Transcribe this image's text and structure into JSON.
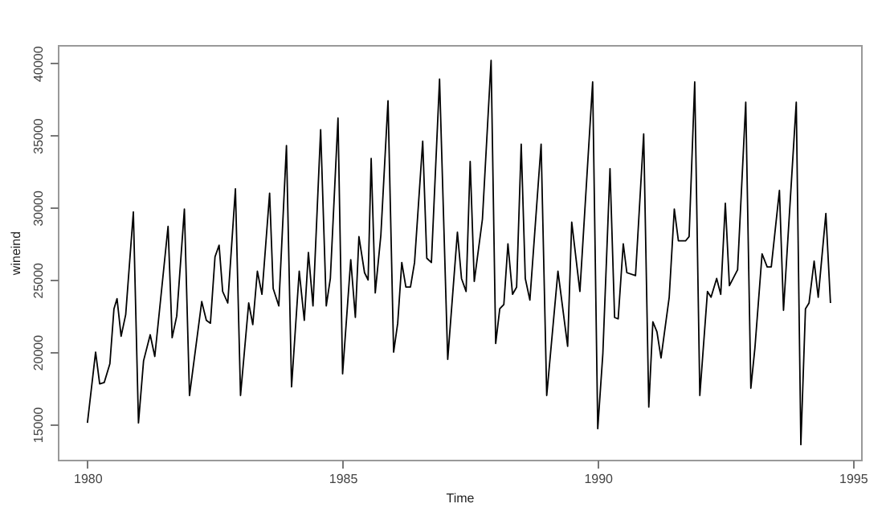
{
  "chart_data": {
    "type": "line",
    "xlabel": "Time",
    "ylabel": "wineind",
    "x": [
      1980.0,
      1980.16,
      1980.24,
      1980.33,
      1980.44,
      1980.52,
      1980.58,
      1980.66,
      1980.75,
      1980.9,
      1981.0,
      1981.1,
      1981.23,
      1981.32,
      1981.58,
      1981.66,
      1981.75,
      1981.9,
      1982.0,
      1982.24,
      1982.33,
      1982.41,
      1982.5,
      1982.58,
      1982.65,
      1982.75,
      1982.9,
      1983.0,
      1983.16,
      1983.24,
      1983.33,
      1983.42,
      1983.57,
      1983.64,
      1983.75,
      1983.9,
      1984.0,
      1984.15,
      1984.25,
      1984.33,
      1984.42,
      1984.57,
      1984.68,
      1984.76,
      1984.91,
      1985.0,
      1985.16,
      1985.25,
      1985.32,
      1985.43,
      1985.5,
      1985.56,
      1985.64,
      1985.75,
      1985.89,
      1986.0,
      1986.08,
      1986.16,
      1986.24,
      1986.33,
      1986.41,
      1986.57,
      1986.65,
      1986.74,
      1986.9,
      1987.06,
      1987.25,
      1987.33,
      1987.42,
      1987.5,
      1987.58,
      1987.74,
      1987.91,
      1988.0,
      1988.08,
      1988.16,
      1988.24,
      1988.33,
      1988.41,
      1988.5,
      1988.58,
      1988.67,
      1988.89,
      1989.0,
      1989.22,
      1989.41,
      1989.49,
      1989.65,
      1989.9,
      1990.0,
      1990.1,
      1990.24,
      1990.33,
      1990.4,
      1990.5,
      1990.57,
      1990.74,
      1990.9,
      1991.0,
      1991.08,
      1991.16,
      1991.24,
      1991.4,
      1991.5,
      1991.58,
      1991.72,
      1991.79,
      1991.9,
      1992.0,
      1992.15,
      1992.22,
      1992.33,
      1992.41,
      1992.5,
      1992.58,
      1992.74,
      1992.9,
      1993.0,
      1993.08,
      1993.22,
      1993.32,
      1993.4,
      1993.56,
      1993.64,
      1993.89,
      1993.98,
      1994.07,
      1994.14,
      1994.24,
      1994.32,
      1994.47,
      1994.56
    ],
    "series": [
      {
        "color": "#000000",
        "values": [
          15100,
          20000,
          17800,
          17900,
          19200,
          23000,
          23700,
          21100,
          22600,
          29700,
          15100,
          19400,
          21200,
          19700,
          28700,
          21000,
          22500,
          29900,
          17000,
          23500,
          22200,
          22000,
          26600,
          27400,
          24200,
          23400,
          31300,
          17000,
          23400,
          21900,
          25600,
          24000,
          31000,
          24400,
          23200,
          34300,
          17600,
          25600,
          22200,
          26900,
          23200,
          35400,
          23200,
          25100,
          36200,
          18500,
          26400,
          22400,
          28000,
          25500,
          25000,
          33400,
          24100,
          28100,
          37400,
          20000,
          22000,
          26200,
          24500,
          24500,
          26200,
          34600,
          26500,
          26200,
          38900,
          19500,
          28300,
          25100,
          24200,
          33200,
          24900,
          29200,
          40200,
          20600,
          23000,
          23300,
          27500,
          24000,
          24500,
          34400,
          25100,
          23600,
          34400,
          17000,
          25600,
          20400,
          29000,
          24200,
          38700,
          14700,
          19900,
          32700,
          22400,
          22300,
          27500,
          25500,
          25300,
          35100,
          16200,
          22100,
          21400,
          19600,
          23800,
          29900,
          27700,
          27700,
          28000,
          38700,
          17000,
          24200,
          23800,
          25100,
          24000,
          30300,
          24600,
          25700,
          37300,
          17500,
          20300,
          26800,
          25900,
          25900,
          31200,
          22900,
          37300,
          13600,
          23000,
          23400,
          26300,
          23800,
          29600,
          23400
        ]
      }
    ],
    "xlim": [
      1979.42,
      1995.16
    ],
    "xticks": [
      1980,
      1985,
      1990,
      1995
    ],
    "ylim": [
      12550,
      41260
    ],
    "yticks": [
      15000,
      20000,
      25000,
      30000,
      35000,
      40000
    ],
    "grid": false,
    "legend": false,
    "line_style": "solid",
    "marker": "none"
  }
}
